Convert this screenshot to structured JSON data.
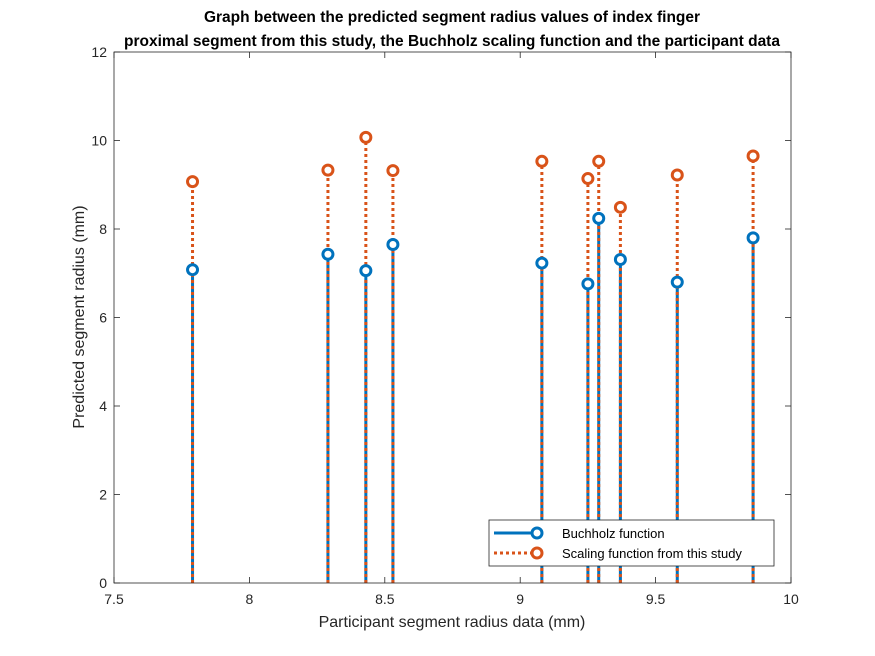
{
  "chart_data": {
    "type": "stem",
    "title_lines": [
      "Graph between the predicted segment radius values of index finger",
      "proximal segment from this study, the Buchholz scaling function and the participant data"
    ],
    "xlabel": "Participant segment radius data (mm)",
    "ylabel": "Predicted segment radius (mm)",
    "xlim": [
      7.5,
      10
    ],
    "ylim": [
      0,
      12
    ],
    "xticks": [
      7.5,
      8,
      8.5,
      9,
      9.5,
      10
    ],
    "xtick_labels": [
      "7.5",
      "8",
      "8.5",
      "9",
      "9.5",
      "10"
    ],
    "yticks": [
      0,
      2,
      4,
      6,
      8,
      10,
      12
    ],
    "ytick_labels": [
      "0",
      "2",
      "4",
      "6",
      "8",
      "10",
      "12"
    ],
    "grid": false,
    "legend_position": "bottom-right",
    "x": [
      7.79,
      8.29,
      8.43,
      8.53,
      9.08,
      9.25,
      9.29,
      9.37,
      9.58,
      9.86
    ],
    "series": [
      {
        "name": "Buchholz function",
        "color": "#0072BD",
        "line_style": "solid",
        "marker": "circle",
        "values": [
          7.08,
          7.43,
          7.06,
          7.65,
          7.23,
          6.76,
          8.24,
          7.31,
          6.8,
          7.8
        ]
      },
      {
        "name": "Scaling function from this study",
        "color": "#D95319",
        "line_style": "dotted",
        "marker": "circle",
        "values": [
          9.07,
          9.33,
          10.07,
          9.32,
          9.53,
          9.14,
          9.53,
          8.49,
          9.22,
          9.65
        ]
      }
    ]
  }
}
